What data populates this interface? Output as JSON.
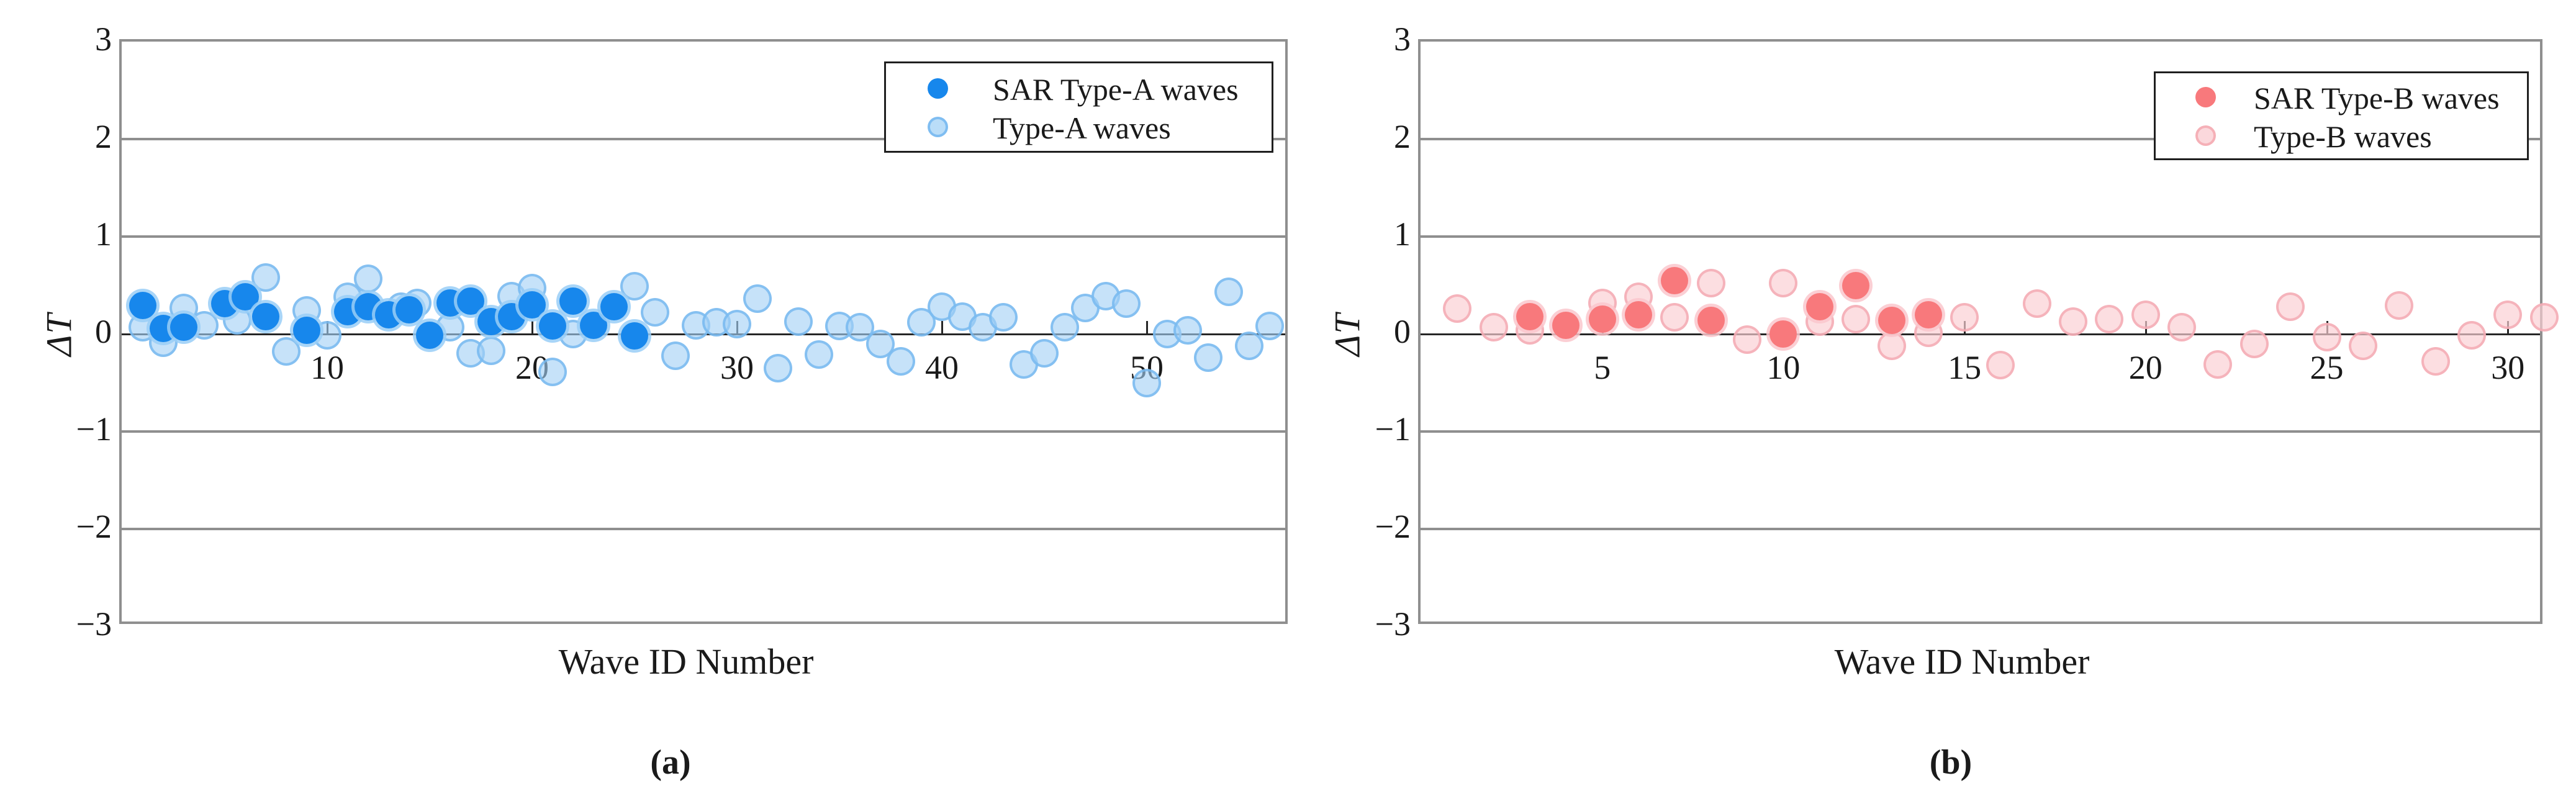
{
  "figure": {
    "background": "#ffffff",
    "panel_captions": [
      "(a)",
      "(b)"
    ]
  },
  "chart_data": [
    {
      "type": "scatter",
      "panel": "a",
      "caption": "(a)",
      "xlabel": "Wave ID Number",
      "ylabel": "ΔT",
      "xlim": [
        0,
        57
      ],
      "ylim": [
        -3,
        3
      ],
      "xticks": [
        10,
        20,
        30,
        40,
        50
      ],
      "yticks": [
        3,
        2,
        1,
        0,
        -1,
        -2,
        -3
      ],
      "ytick_labels": [
        "3",
        "2",
        "1",
        "0",
        "−1",
        "−2",
        "−3"
      ],
      "grid": true,
      "legend_position": "top-right-inside",
      "legend": [
        "SAR Type-A waves",
        "Type-A waves"
      ],
      "colors": {
        "sar_fill": "#1787ec",
        "wave_fill": "#a3d1f6",
        "wave_edge": "#75b8f0"
      },
      "series": [
        {
          "name": "Type-A waves",
          "role": "light",
          "points": [
            [
              1,
              0.07
            ],
            [
              2,
              -0.09
            ],
            [
              3,
              0.27
            ],
            [
              4,
              0.09
            ],
            [
              5.6,
              0.14
            ],
            [
              7,
              0.58
            ],
            [
              8,
              -0.18
            ],
            [
              9,
              0.24
            ],
            [
              10,
              -0.01
            ],
            [
              11,
              0.38
            ],
            [
              12,
              0.57
            ],
            [
              13.6,
              0.28
            ],
            [
              14.4,
              0.32
            ],
            [
              16,
              0.07
            ],
            [
              17,
              -0.2
            ],
            [
              18,
              -0.17
            ],
            [
              19,
              0.39
            ],
            [
              20,
              0.47
            ],
            [
              21,
              -0.39
            ],
            [
              22,
              0.0
            ],
            [
              25,
              0.49
            ],
            [
              26,
              0.22
            ],
            [
              27,
              -0.22
            ],
            [
              28,
              0.09
            ],
            [
              29,
              0.12
            ],
            [
              30,
              0.1
            ],
            [
              31,
              0.36
            ],
            [
              32,
              -0.35
            ],
            [
              33,
              0.13
            ],
            [
              34,
              -0.21
            ],
            [
              35,
              0.08
            ],
            [
              36,
              0.07
            ],
            [
              37,
              -0.1
            ],
            [
              38,
              -0.28
            ],
            [
              39,
              0.12
            ],
            [
              40,
              0.28
            ],
            [
              41,
              0.18
            ],
            [
              42,
              0.07
            ],
            [
              43,
              0.17
            ],
            [
              44,
              -0.31
            ],
            [
              45,
              -0.2
            ],
            [
              46,
              0.07
            ],
            [
              47,
              0.27
            ],
            [
              48,
              0.39
            ],
            [
              49,
              0.31
            ],
            [
              50,
              -0.5
            ],
            [
              51,
              0.0
            ],
            [
              52,
              0.04
            ],
            [
              53,
              -0.24
            ],
            [
              54,
              0.43
            ],
            [
              55,
              -0.12
            ],
            [
              56,
              0.08
            ]
          ]
        },
        {
          "name": "SAR Type-A waves",
          "role": "dark",
          "points": [
            [
              1,
              0.29
            ],
            [
              2,
              0.06
            ],
            [
              3,
              0.07
            ],
            [
              5,
              0.31
            ],
            [
              6,
              0.38
            ],
            [
              7,
              0.18
            ],
            [
              9,
              0.04
            ],
            [
              11,
              0.23
            ],
            [
              12,
              0.28
            ],
            [
              13,
              0.2
            ],
            [
              14,
              0.25
            ],
            [
              15,
              -0.01
            ],
            [
              16,
              0.32
            ],
            [
              17,
              0.34
            ],
            [
              18,
              0.13
            ],
            [
              19,
              0.18
            ],
            [
              20,
              0.3
            ],
            [
              21,
              0.08
            ],
            [
              22,
              0.34
            ],
            [
              23,
              0.09
            ],
            [
              24,
              0.28
            ],
            [
              25,
              -0.02
            ]
          ]
        }
      ]
    },
    {
      "type": "scatter",
      "panel": "b",
      "caption": "(b)",
      "xlabel": "Wave ID Number",
      "ylabel": "ΔT",
      "xlim": [
        0,
        31
      ],
      "ylim": [
        -3,
        3
      ],
      "xticks": [
        5,
        10,
        15,
        20,
        25,
        30
      ],
      "yticks": [
        3,
        2,
        1,
        0,
        -1,
        -2,
        -3
      ],
      "ytick_labels": [
        "3",
        "2",
        "1",
        "0",
        "−1",
        "−2",
        "−3"
      ],
      "grid": true,
      "legend_position": "top-right-inside",
      "legend": [
        "SAR Type-B waves",
        "Type-B waves"
      ],
      "colors": {
        "sar_fill": "#f8797c",
        "wave_fill": "#facdd3",
        "wave_edge": "#f4a9b1"
      },
      "series": [
        {
          "name": "Type-B waves",
          "role": "light",
          "points": [
            [
              1,
              0.26
            ],
            [
              2,
              0.07
            ],
            [
              3,
              0.04
            ],
            [
              5,
              0.32
            ],
            [
              6,
              0.38
            ],
            [
              7,
              0.17
            ],
            [
              8,
              0.52
            ],
            [
              9,
              -0.06
            ],
            [
              10,
              0.52
            ],
            [
              11,
              0.13
            ],
            [
              12,
              0.15
            ],
            [
              13,
              -0.12
            ],
            [
              14,
              0.01
            ],
            [
              15,
              0.17
            ],
            [
              16,
              -0.32
            ],
            [
              17,
              0.31
            ],
            [
              18,
              0.13
            ],
            [
              19,
              0.15
            ],
            [
              20,
              0.2
            ],
            [
              21,
              0.07
            ],
            [
              22,
              -0.31
            ],
            [
              23,
              -0.1
            ],
            [
              24,
              0.28
            ],
            [
              25,
              -0.03
            ],
            [
              26,
              -0.12
            ],
            [
              27,
              0.29
            ],
            [
              28,
              -0.28
            ],
            [
              29,
              -0.01
            ],
            [
              30,
              0.2
            ],
            [
              31,
              0.17
            ]
          ]
        },
        {
          "name": "SAR Type-B waves",
          "role": "dark",
          "points": [
            [
              3,
              0.18
            ],
            [
              4,
              0.09
            ],
            [
              5,
              0.15
            ],
            [
              6,
              0.2
            ],
            [
              7,
              0.55
            ],
            [
              8,
              0.14
            ],
            [
              10,
              0.0
            ],
            [
              11,
              0.28
            ],
            [
              12,
              0.5
            ],
            [
              13,
              0.14
            ],
            [
              14,
              0.2
            ]
          ]
        }
      ]
    }
  ]
}
